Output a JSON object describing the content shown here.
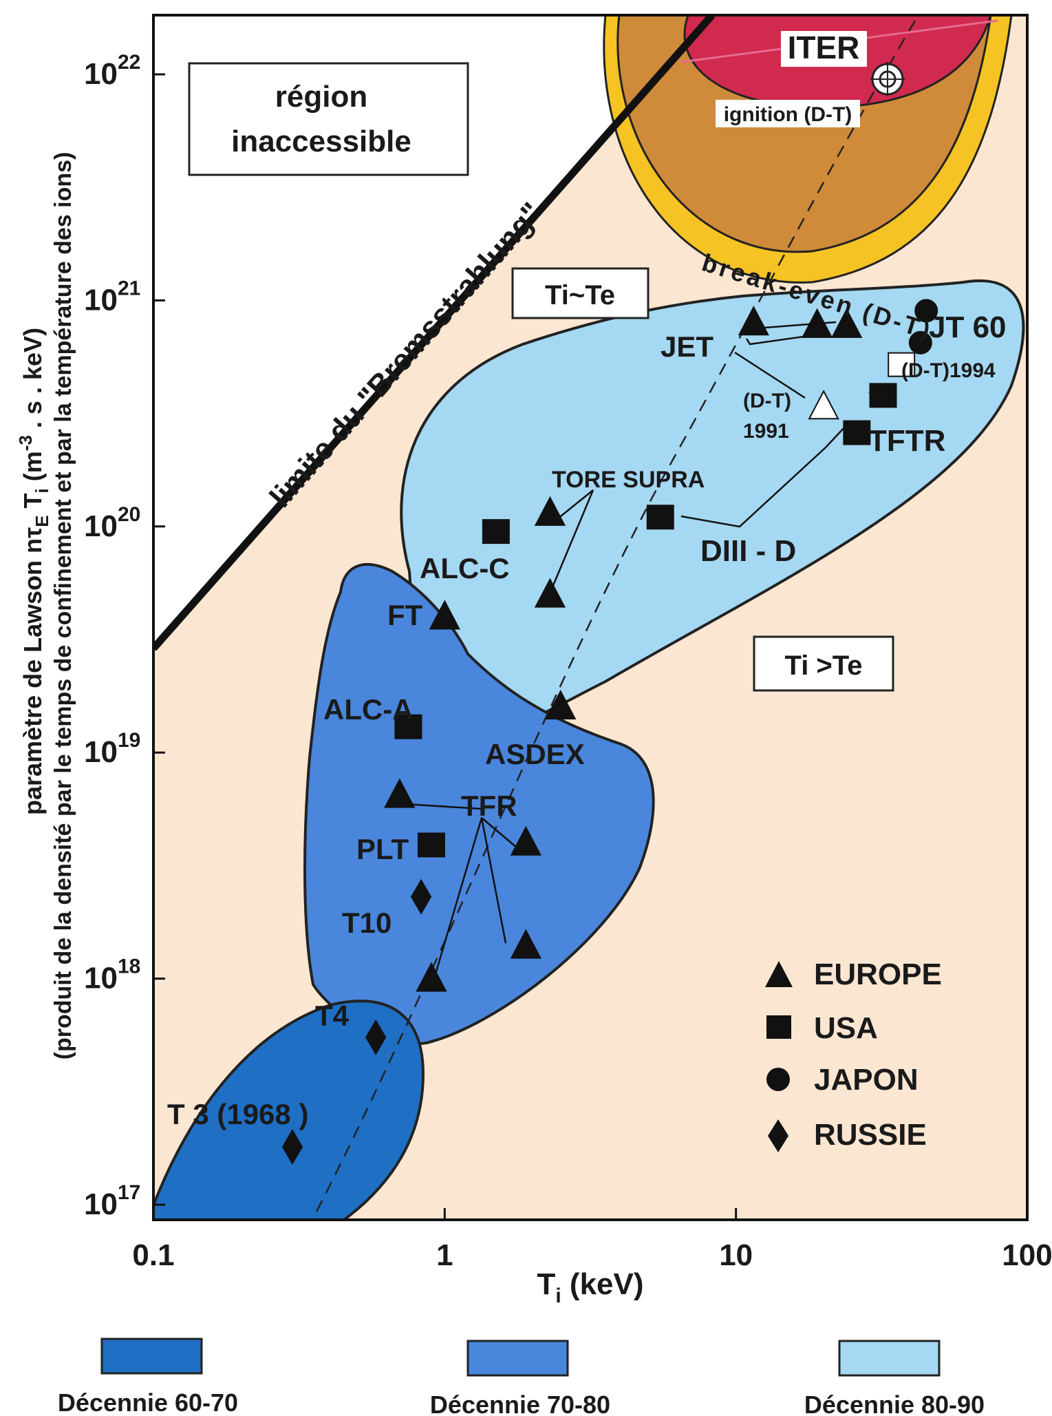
{
  "chart_data": {
    "type": "scatter",
    "xlabel": "T",
    "xlabel_sub": "i",
    "xlabel_unit": " (keV)",
    "ylabel_line1_pre": "paramètre de Lawson nτ",
    "ylabel_line1_sub": "E",
    "ylabel_line1_mid": " T",
    "ylabel_line1_sub2": "i",
    "ylabel_line1_post": " (m",
    "ylabel_line1_sup": "-3",
    "ylabel_line1_end": " . s . keV)",
    "ylabel_line2": "(produit de la densité par le temps de confinement et par la température des ions)",
    "x_scale": "log",
    "y_scale": "log",
    "xlim": [
      0.1,
      100
    ],
    "ylim": [
      1e+17,
      1.2e+22
    ],
    "x_ticks": [
      {
        "value": 0.1,
        "label": "0.1"
      },
      {
        "value": 1,
        "label": "1"
      },
      {
        "value": 10,
        "label": "10"
      },
      {
        "value": 100,
        "label": "100"
      }
    ],
    "y_ticks": [
      {
        "value": 1e+17,
        "base": "10",
        "exp": "17"
      },
      {
        "value": 1e+18,
        "base": "10",
        "exp": "18"
      },
      {
        "value": 1e+19,
        "base": "10",
        "exp": "19"
      },
      {
        "value": 1e+20,
        "base": "10",
        "exp": "20"
      },
      {
        "value": 1e+21,
        "base": "10",
        "exp": "21"
      },
      {
        "value": 1e+22,
        "base": "10",
        "exp": "22"
      }
    ],
    "colors": {
      "background": "#fbe6d2",
      "decade_60_70": "#1f6fc4",
      "decade_70_80": "#4a86dc",
      "decade_80_90": "#a5d8f2",
      "ignition": "#d02a4e",
      "between": "#cf8a3a",
      "breakeven": "#f6c324"
    },
    "regions": [
      {
        "name": "Décennie 60-70",
        "color": "#1f6fc4"
      },
      {
        "name": "Décennie 70-80",
        "color": "#4a86dc"
      },
      {
        "name": "Décennie 80-90",
        "color": "#a5d8f2"
      }
    ],
    "legend": [
      {
        "symbol": "triangle",
        "label": "EUROPE"
      },
      {
        "symbol": "square",
        "label": "USA"
      },
      {
        "symbol": "circle",
        "label": "JAPON"
      },
      {
        "symbol": "diamond",
        "label": "RUSSIE"
      }
    ],
    "series": [
      {
        "name": "EUROPE",
        "symbol": "triangle",
        "points": [
          {
            "x": 11.5,
            "y": 8e+20
          },
          {
            "x": 19,
            "y": 7.8e+20
          },
          {
            "x": 24,
            "y": 7.8e+20
          },
          {
            "x": 2.3,
            "y": 1.15e+20
          },
          {
            "x": 2.3,
            "y": 5e+19
          },
          {
            "x": 1.0,
            "y": 4e+19
          },
          {
            "x": 2.5,
            "y": 1.6e+19
          },
          {
            "x": 0.7,
            "y": 6.5e+18
          },
          {
            "x": 1.9,
            "y": 4e+18
          },
          {
            "x": 1.9,
            "y": 1.4e+18
          },
          {
            "x": 0.9,
            "y": 1e+18
          },
          {
            "x": 20,
            "y": 3.4e+20,
            "hollow": true
          }
        ]
      },
      {
        "name": "USA",
        "symbol": "square",
        "points": [
          {
            "x": 0.9,
            "y": 3.9e+18
          },
          {
            "x": 0.75,
            "y": 1.3e+19
          },
          {
            "x": 1.5,
            "y": 9.5e+19
          },
          {
            "x": 5.5,
            "y": 1.1e+20
          },
          {
            "x": 26,
            "y": 2.6e+20
          },
          {
            "x": 32,
            "y": 3.8e+20
          },
          {
            "x": 37,
            "y": 5.2e+20,
            "hollow": true
          }
        ]
      },
      {
        "name": "JAPON",
        "symbol": "circle",
        "points": [
          {
            "x": 45,
            "y": 9e+20
          },
          {
            "x": 43,
            "y": 6.5e+20
          }
        ]
      },
      {
        "name": "RUSSIE",
        "symbol": "diamond",
        "points": [
          {
            "x": 0.3,
            "y": 1.8e+17
          },
          {
            "x": 0.58,
            "y": 5.5e+17
          },
          {
            "x": 0.83,
            "y": 2.3e+18
          }
        ]
      }
    ],
    "annotations": {
      "region_inaccessible_1": "région",
      "region_inaccessible_2": "inaccessible",
      "brems": "limite du \"Bremsstrahlung\"",
      "ti_te_eq": "Ti~Te",
      "ti_gt_te": "Ti >Te",
      "iter": "ITER",
      "ignition": "ignition (D-T)",
      "breakeven": "break-even (D-T)",
      "jt60": "JT 60",
      "jet": "JET",
      "dt1994": "(D-T)1994",
      "dt1991_a": "(D-T)",
      "dt1991_b": "1991",
      "tftr": "TFTR",
      "toresupra": "TORE SUPRA",
      "diiid": "DIII - D",
      "alcc": "ALC-C",
      "ft": "FT",
      "alca": "ALC-A",
      "asdex": "ASDEX",
      "tfr": "TFR",
      "plt": "PLT",
      "t10": "T10",
      "t4": "T4",
      "t3": "T 3 (1968 )"
    }
  }
}
